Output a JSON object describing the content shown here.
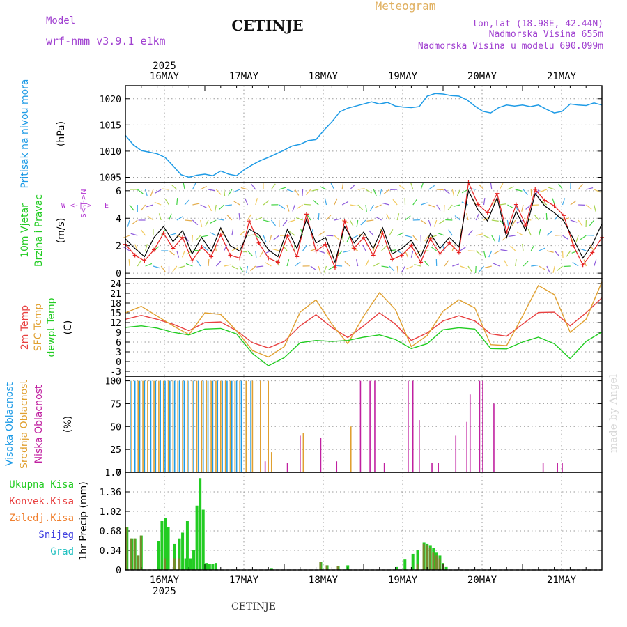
{
  "header": {
    "model_label": "Model",
    "model_name": "wrf-nmm_v3.9.1 e1km",
    "station": "CETINJE",
    "product": "Meteogram",
    "lonlat": "lon,lat (18.98E, 42.44N)",
    "elevation": "Nadmorska Visina 655m",
    "model_elevation": "Nadmorska Visina u modelu 690.099m"
  },
  "footer": {
    "station": "CETINJE",
    "credit": "made by Angel"
  },
  "time_axis": {
    "year_label": "2025",
    "day_labels": [
      "16MAY",
      "17MAY",
      "18MAY",
      "19MAY",
      "20MAY",
      "21MAY"
    ]
  },
  "colors": {
    "pressure": "#1e9be6",
    "wind_speed": "#000000",
    "gust": "#e62020",
    "temp2m": "#e84040",
    "sfc_temp": "#e0a030",
    "dewpt": "#22cc22",
    "cloud_high": "#1e9be6",
    "cloud_mid": "#e0a030",
    "cloud_low": "#c020a0",
    "precip_total": "#22cc22",
    "precip_conv": "#e84040",
    "precip_frozen": "#f08030",
    "precip_snow": "#4040e0",
    "precip_hail": "#20c0c0",
    "wind_dir_label": "#b030d0",
    "model_text": "#a040d0",
    "meteogram": "#e0b060",
    "credit": "#d8d8d8"
  },
  "chart_data": [
    {
      "id": "pressure",
      "type": "line",
      "ylabel": "(hPa)",
      "side_label": "Pritisak na nivou mora",
      "ylim": [
        1004,
        1022.5
      ],
      "yticks": [
        1005,
        1010,
        1015,
        1020
      ],
      "series": [
        {
          "x": [
            0,
            0.5,
            1,
            1.5,
            2,
            2.5,
            3,
            3.5,
            4,
            4.5,
            5,
            5.5,
            6,
            6.5,
            7,
            7.5,
            8,
            8.5,
            9,
            9.5,
            10,
            10.5,
            11,
            11.5,
            12,
            12.5,
            13,
            13.5,
            14,
            14.5,
            15,
            15.5,
            16,
            16.5,
            17,
            17.5,
            18,
            18.5,
            19,
            19.5,
            20,
            20.5,
            21,
            21.5,
            22,
            22.5,
            23,
            23.5,
            24,
            24.5,
            25,
            25.5,
            26,
            26.5,
            27,
            27.5,
            28,
            28.5,
            29,
            29.5,
            30
          ],
          "values": [
            1013,
            1011.2,
            1010.1,
            1009.8,
            1009.5,
            1008.8,
            1007.2,
            1005.5,
            1005,
            1005.4,
            1005.6,
            1005.3,
            1006.2,
            1005.6,
            1005.3,
            1006.5,
            1007.4,
            1008.2,
            1008.8,
            1009.5,
            1010.2,
            1011,
            1011.3,
            1012,
            1012.2,
            1014,
            1015.6,
            1017.5,
            1018.2,
            1018.6,
            1019,
            1019.4,
            1019,
            1019.3,
            1018.6,
            1018.4,
            1018.3,
            1018.5,
            1020.5,
            1021,
            1020.9,
            1020.6,
            1020.5,
            1019.8,
            1018.6,
            1017.6,
            1017.3,
            1018.3,
            1018.8,
            1018.6,
            1018.8,
            1018.5,
            1018.8,
            1018,
            1017.3,
            1017.6,
            1019,
            1018.8,
            1018.7,
            1019.2,
            1018.8
          ]
        }
      ]
    },
    {
      "id": "wind",
      "type": "line",
      "ylabel": "(m/s)",
      "side_label": "10m Vjetar Brzina i Pravac",
      "compass": [
        "W",
        "<-|->",
        "E"
      ],
      "compass_vertical": "S<-|->N",
      "ylim": [
        -0.4,
        6.6
      ],
      "yticks": [
        0,
        2,
        4,
        6
      ],
      "series": [
        {
          "name": "speed",
          "x": [
            0,
            0.6,
            1.2,
            1.8,
            2.4,
            3,
            3.6,
            4.2,
            4.8,
            5.4,
            6,
            6.6,
            7.2,
            7.8,
            8.4,
            9,
            9.6,
            10.2,
            10.8,
            11.4,
            12,
            12.6,
            13.2,
            13.8,
            14.4,
            15,
            15.6,
            16.2,
            16.8,
            17.4,
            18,
            18.6,
            19.2,
            19.8,
            20.4,
            21,
            21.6,
            22.2,
            22.8,
            23.4,
            24,
            24.6,
            25.2,
            25.8,
            26.4,
            27,
            27.6,
            28.2,
            28.8,
            29.4,
            30
          ],
          "values": [
            2.5,
            1.8,
            1.2,
            2.6,
            3.4,
            2.3,
            3.1,
            1.4,
            2.6,
            1.6,
            3.3,
            2.0,
            1.6,
            3.2,
            2.8,
            1.7,
            1.2,
            3.2,
            1.8,
            3.9,
            2.2,
            2.6,
            0.8,
            3.4,
            2.2,
            3.0,
            1.8,
            3.3,
            1.4,
            1.8,
            2.4,
            1.2,
            2.9,
            1.8,
            2.6,
            1.9,
            6.0,
            4.6,
            3.8,
            5.5,
            2.6,
            4.5,
            3.1,
            5.8,
            4.9,
            4.4,
            3.8,
            2.5,
            1.1,
            2.1,
            3.6
          ]
        },
        {
          "name": "gust",
          "x": [
            0,
            0.6,
            1.2,
            1.8,
            2.4,
            3,
            3.6,
            4.2,
            4.8,
            5.4,
            6,
            6.6,
            7.2,
            7.8,
            8.4,
            9,
            9.6,
            10.2,
            10.8,
            11.4,
            12,
            12.6,
            13.2,
            13.8,
            14.4,
            15,
            15.6,
            16.2,
            16.8,
            17.4,
            18,
            18.6,
            19.2,
            19.8,
            20.4,
            21,
            21.6,
            22.2,
            22.8,
            23.4,
            24,
            24.6,
            25.2,
            25.8,
            26.4,
            27,
            27.6,
            28.2,
            28.8,
            29.4,
            30
          ],
          "values": [
            2.1,
            1.3,
            0.9,
            1.7,
            2.9,
            1.8,
            2.6,
            0.9,
            1.9,
            1.2,
            2.8,
            1.3,
            1.1,
            3.8,
            2.2,
            1.1,
            0.8,
            2.7,
            1.2,
            4.3,
            1.6,
            2.1,
            0.4,
            3.8,
            1.8,
            2.6,
            1.3,
            2.9,
            1.0,
            1.3,
            2.0,
            0.8,
            2.5,
            1.4,
            2.2,
            1.5,
            6.6,
            5.0,
            4.4,
            5.8,
            3.0,
            5.0,
            3.5,
            6.1,
            5.3,
            4.9,
            4.2,
            2.0,
            0.6,
            1.5,
            2.6
          ]
        }
      ]
    },
    {
      "id": "temperature",
      "type": "line",
      "ylabel": "(C)",
      "side_labels": [
        "2m Temp",
        "SFC Temp",
        "dewpt Temp"
      ],
      "ylim": [
        -4.5,
        25.5
      ],
      "yticks": [
        -3,
        0,
        3,
        6,
        9,
        12,
        15,
        18,
        21,
        24
      ],
      "series": [
        {
          "name": "2m Temp",
          "x": [
            0,
            1,
            2,
            3,
            4,
            5,
            6,
            7,
            8,
            9,
            10,
            11,
            12,
            13,
            14,
            15,
            16,
            17,
            18,
            19,
            20,
            21,
            22,
            23,
            24,
            25,
            26,
            27,
            28,
            29,
            30
          ],
          "values": [
            13,
            14.2,
            13,
            11.5,
            9.5,
            12,
            12.2,
            9.5,
            5.8,
            4.2,
            6.2,
            11,
            14.4,
            10.5,
            7.4,
            11,
            15,
            11.5,
            6.5,
            8.8,
            12.5,
            14.1,
            12.5,
            8.5,
            7.8,
            11.5,
            15.1,
            15.2,
            11,
            15,
            19.6
          ]
        },
        {
          "name": "SFC Temp",
          "x": [
            0,
            1,
            2,
            3,
            4,
            5,
            6,
            7,
            8,
            9,
            10,
            11,
            12,
            13,
            14,
            15,
            16,
            17,
            18,
            19,
            20,
            21,
            22,
            23,
            24,
            25,
            26,
            27,
            28,
            29,
            30
          ],
          "values": [
            15,
            17,
            14,
            11,
            8.3,
            15,
            14.5,
            9.5,
            3.4,
            1.4,
            4.6,
            15.2,
            19,
            11.5,
            5.5,
            14,
            21.2,
            16,
            4.6,
            8,
            15.5,
            19,
            16.5,
            5.2,
            4.9,
            14,
            23.4,
            20.6,
            9,
            13,
            24.5
          ]
        },
        {
          "name": "dewpt Temp",
          "x": [
            0,
            1,
            2,
            3,
            4,
            5,
            6,
            7,
            8,
            9,
            10,
            11,
            12,
            13,
            14,
            15,
            16,
            17,
            18,
            19,
            20,
            21,
            22,
            23,
            24,
            25,
            26,
            27,
            28,
            29,
            30
          ],
          "values": [
            10.5,
            11,
            10.3,
            9,
            8.2,
            10,
            10.2,
            8.5,
            2.5,
            -1.3,
            1.2,
            5.8,
            6.5,
            6.2,
            6.5,
            7.5,
            8.2,
            6.8,
            4,
            5.5,
            9.8,
            10.4,
            10,
            4,
            3.9,
            6,
            7.5,
            5.5,
            0.9,
            6.2,
            9.1
          ]
        }
      ]
    },
    {
      "id": "cloud",
      "type": "bar",
      "ylabel": "(%)",
      "side_labels": [
        "Visoka Oblacnost",
        "Srednja Oblacnost",
        "Niska Oblacnost"
      ],
      "ylim": [
        0,
        105
      ],
      "yticks": [
        0,
        25,
        50,
        75,
        100
      ],
      "series": [
        {
          "name": "Visoka Oblacnost",
          "x": [
            0.3,
            0.6,
            0.9,
            1.2,
            1.6,
            1.9,
            2.2,
            2.5,
            2.8,
            3.1,
            3.4,
            3.7,
            4.0,
            4.3,
            4.6,
            4.9,
            5.2,
            5.5,
            5.8,
            6.1,
            6.4,
            6.7,
            7.0,
            7.3,
            7.6,
            7.9
          ],
          "values": [
            100,
            100,
            100,
            100,
            100,
            100,
            100,
            100,
            100,
            100,
            100,
            100,
            100,
            100,
            100,
            100,
            100,
            100,
            100,
            100,
            100,
            100,
            100,
            100,
            100,
            100
          ]
        },
        {
          "name": "Srednja Oblacnost",
          "x": [
            0.4,
            0.8,
            1.1,
            1.4,
            1.8,
            2.1,
            2.4,
            2.7,
            3.0,
            3.3,
            3.6,
            3.9,
            4.2,
            4.5,
            4.8,
            5.1,
            5.4,
            5.7,
            6.0,
            6.3,
            6.6,
            6.9,
            7.2,
            7.6,
            8.0,
            8.5,
            9.0,
            9.2,
            11.2,
            14.2,
            18.1
          ],
          "values": [
            100,
            100,
            100,
            100,
            100,
            100,
            100,
            100,
            100,
            100,
            100,
            100,
            100,
            100,
            100,
            100,
            100,
            100,
            100,
            100,
            100,
            100,
            100,
            100,
            100,
            100,
            100,
            22,
            43,
            50,
            48
          ]
        },
        {
          "name": "Niska Oblacnost",
          "x": [
            8.8,
            10.2,
            11.0,
            12.3,
            13.3,
            14.8,
            15.4,
            15.7,
            16.3,
            17.8,
            18.1,
            18.5,
            19.3,
            19.7,
            20.8,
            21.5,
            21.7,
            22.3,
            22.5,
            23.2,
            26.3,
            27.2,
            27.5
          ],
          "values": [
            12,
            10,
            40,
            38,
            12,
            100,
            100,
            100,
            10,
            100,
            100,
            57,
            10,
            10,
            40,
            55,
            85,
            100,
            100,
            75,
            10,
            10,
            10
          ]
        }
      ]
    },
    {
      "id": "precip",
      "type": "bar",
      "ylabel": "1hr Precip (mm)",
      "side_labels": [
        "Ukupna Kisa",
        "Konvek.Kisa",
        "Zaledj.Kisa",
        "Snijeg",
        "Grad"
      ],
      "ylim": [
        0,
        1.7
      ],
      "yticks": [
        0,
        0.34,
        0.68,
        1.02,
        1.36,
        1.7
      ],
      "series": [
        {
          "name": "Ukupna Kisa",
          "x": [
            0.1,
            0.4,
            0.6,
            0.8,
            1.0,
            2.1,
            2.3,
            2.5,
            2.7,
            3.1,
            3.4,
            3.6,
            3.8,
            3.9,
            4.1,
            4.3,
            4.5,
            4.7,
            4.9,
            5.1,
            5.3,
            5.5,
            5.7,
            9.2,
            12.3,
            12.7,
            13.4,
            14.0,
            17.1,
            17.6,
            18.1,
            18.4,
            18.8,
            19.0,
            19.2,
            19.4,
            19.6,
            19.8,
            20.0,
            20.2
          ],
          "values": [
            0.75,
            0.55,
            0.55,
            0.25,
            0.6,
            0.5,
            0.85,
            0.9,
            0.75,
            0.45,
            0.55,
            0.65,
            0.2,
            0.85,
            0.2,
            0.35,
            1.12,
            1.6,
            1.05,
            0.12,
            0.1,
            0.1,
            0.12,
            0.02,
            0.14,
            0.08,
            0.06,
            0.08,
            0.05,
            0.18,
            0.28,
            0.35,
            0.48,
            0.45,
            0.42,
            0.38,
            0.3,
            0.25,
            0.12,
            0.05
          ]
        },
        {
          "name": "Konvek.Kisa",
          "x": [
            0.1,
            0.4,
            0.6,
            0.8,
            1.0,
            2.5,
            3.1,
            3.4,
            12.3,
            12.7,
            13.4,
            18.4,
            18.8,
            19.0,
            19.2,
            19.4,
            19.6,
            19.8,
            20.0
          ],
          "values": [
            0.75,
            0.55,
            0.55,
            0.25,
            0.6,
            0.2,
            0.2,
            0.2,
            0.14,
            0.08,
            0.06,
            0.1,
            0.45,
            0.42,
            0.38,
            0.3,
            0.25,
            0.2,
            0.1
          ]
        }
      ]
    }
  ]
}
